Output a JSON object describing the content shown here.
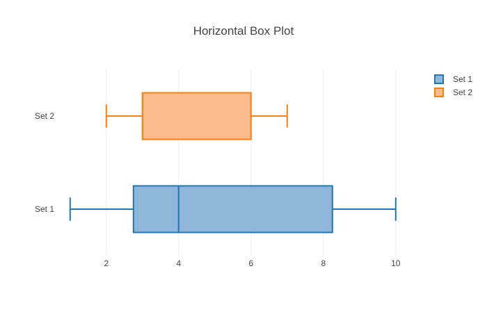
{
  "chart_data": {
    "type": "box",
    "orientation": "horizontal",
    "title": "Horizontal Box Plot",
    "xlabel": "",
    "ylabel": "",
    "xlim": [
      0.6,
      10.6
    ],
    "x_ticks": [
      2,
      4,
      6,
      8,
      10
    ],
    "grid": true,
    "legend_position": "top-right",
    "series": [
      {
        "name": "Set 1",
        "category": "Set 1",
        "min": 1,
        "q1": 2.75,
        "median": 4,
        "q3": 8.25,
        "max": 10,
        "color": "#1f77b4",
        "fill": "#8fb6da"
      },
      {
        "name": "Set 2",
        "category": "Set 2",
        "min": 2,
        "q1": 3,
        "median": 3,
        "q3": 6,
        "max": 7,
        "color": "#ff7f0e",
        "fill": "#fdbb8e"
      }
    ]
  }
}
